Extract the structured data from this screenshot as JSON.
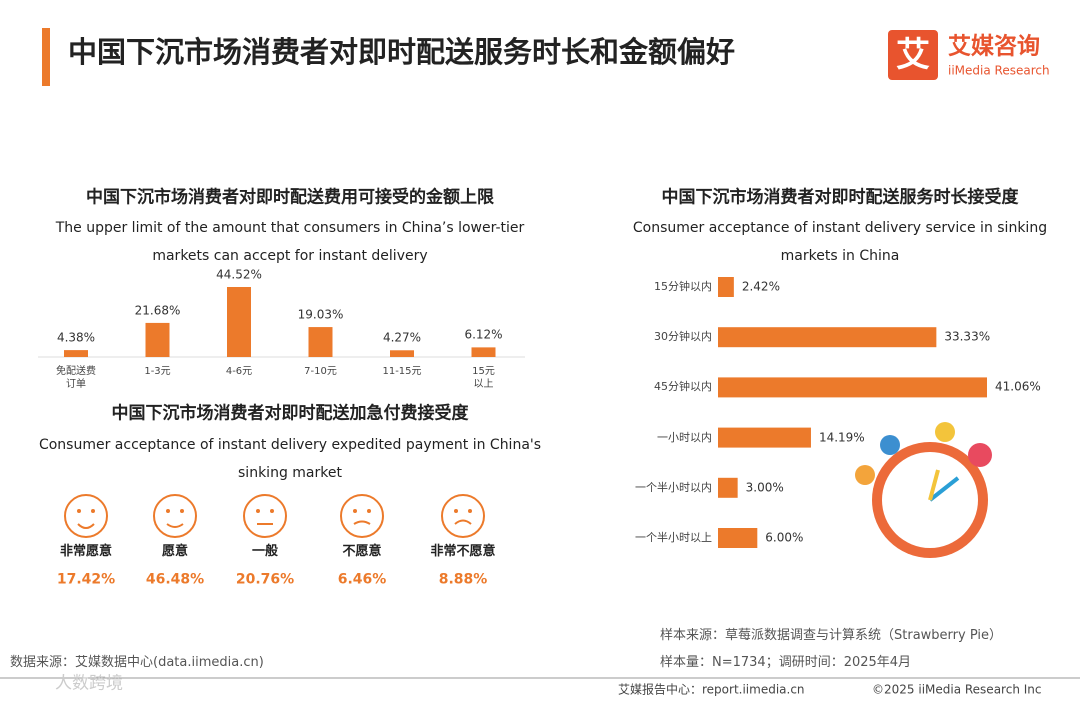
{
  "header": {
    "title": "中国下沉市场消费者对即时配送服务时长和金额偏好",
    "logo_mark": "艾",
    "logo_name": "艾媒咨询",
    "logo_en": "iiMedia Research"
  },
  "chart_data": [
    {
      "type": "bar",
      "title": "中国下沉市场消费者对即时配送费用可接受的金额上限",
      "subtitle": "The upper limit of the amount that consumers in China’s lower-tier markets can accept for instant delivery",
      "categories": [
        "免配送费\n订单",
        "1-3元",
        "4-6元",
        "7-10元",
        "11-15元",
        "15元\n以上"
      ],
      "values": [
        4.38,
        21.68,
        44.52,
        19.03,
        4.27,
        6.12
      ],
      "value_labels": [
        "4.38%",
        "21.68%",
        "44.52%",
        "19.03%",
        "4.27%",
        "6.12%"
      ],
      "color": "#ec7a2b"
    },
    {
      "type": "barh",
      "title": "中国下沉市场消费者对即时配送服务时长接受度",
      "subtitle": "Consumer acceptance of instant delivery service in sinking markets in China",
      "categories": [
        "15分钟以内",
        "30分钟以内",
        "45分钟以内",
        "一小时以内",
        "一个半小时以内",
        "一个半小时以上"
      ],
      "values": [
        2.42,
        33.33,
        41.06,
        14.19,
        3.0,
        6.0
      ],
      "value_labels": [
        "2.42%",
        "33.33%",
        "41.06%",
        "14.19%",
        "3.00%",
        "6.00%"
      ],
      "color": "#ec7a2b"
    },
    {
      "type": "pictogram",
      "title": "中国下沉市场消费者对即时配送加急付费接受度",
      "subtitle": "Consumer acceptance of instant delivery expedited payment in China's sinking market",
      "categories": [
        "非常愿意",
        "愿意",
        "一般",
        "不愿意",
        "非常不愿意"
      ],
      "values": [
        17.42,
        46.48,
        20.76,
        6.46,
        8.88
      ],
      "value_labels": [
        "17.42%",
        "46.48%",
        "20.76%",
        "6.46%",
        "8.88%"
      ],
      "color": "#ec7a2b"
    }
  ],
  "footer": {
    "data_source": "数据来源：艾媒数据中心(data.iimedia.cn)",
    "sample_source": "样本来源：草莓派数据调查与计算系统（Strawberry Pie）",
    "sample_size": "样本量：N=1734；调研时间：2025年4月",
    "report_center": "艾媒报告中心：report.iimedia.cn",
    "copyright": "©2025  iiMedia Research  Inc",
    "watermark": "人数跨境"
  }
}
